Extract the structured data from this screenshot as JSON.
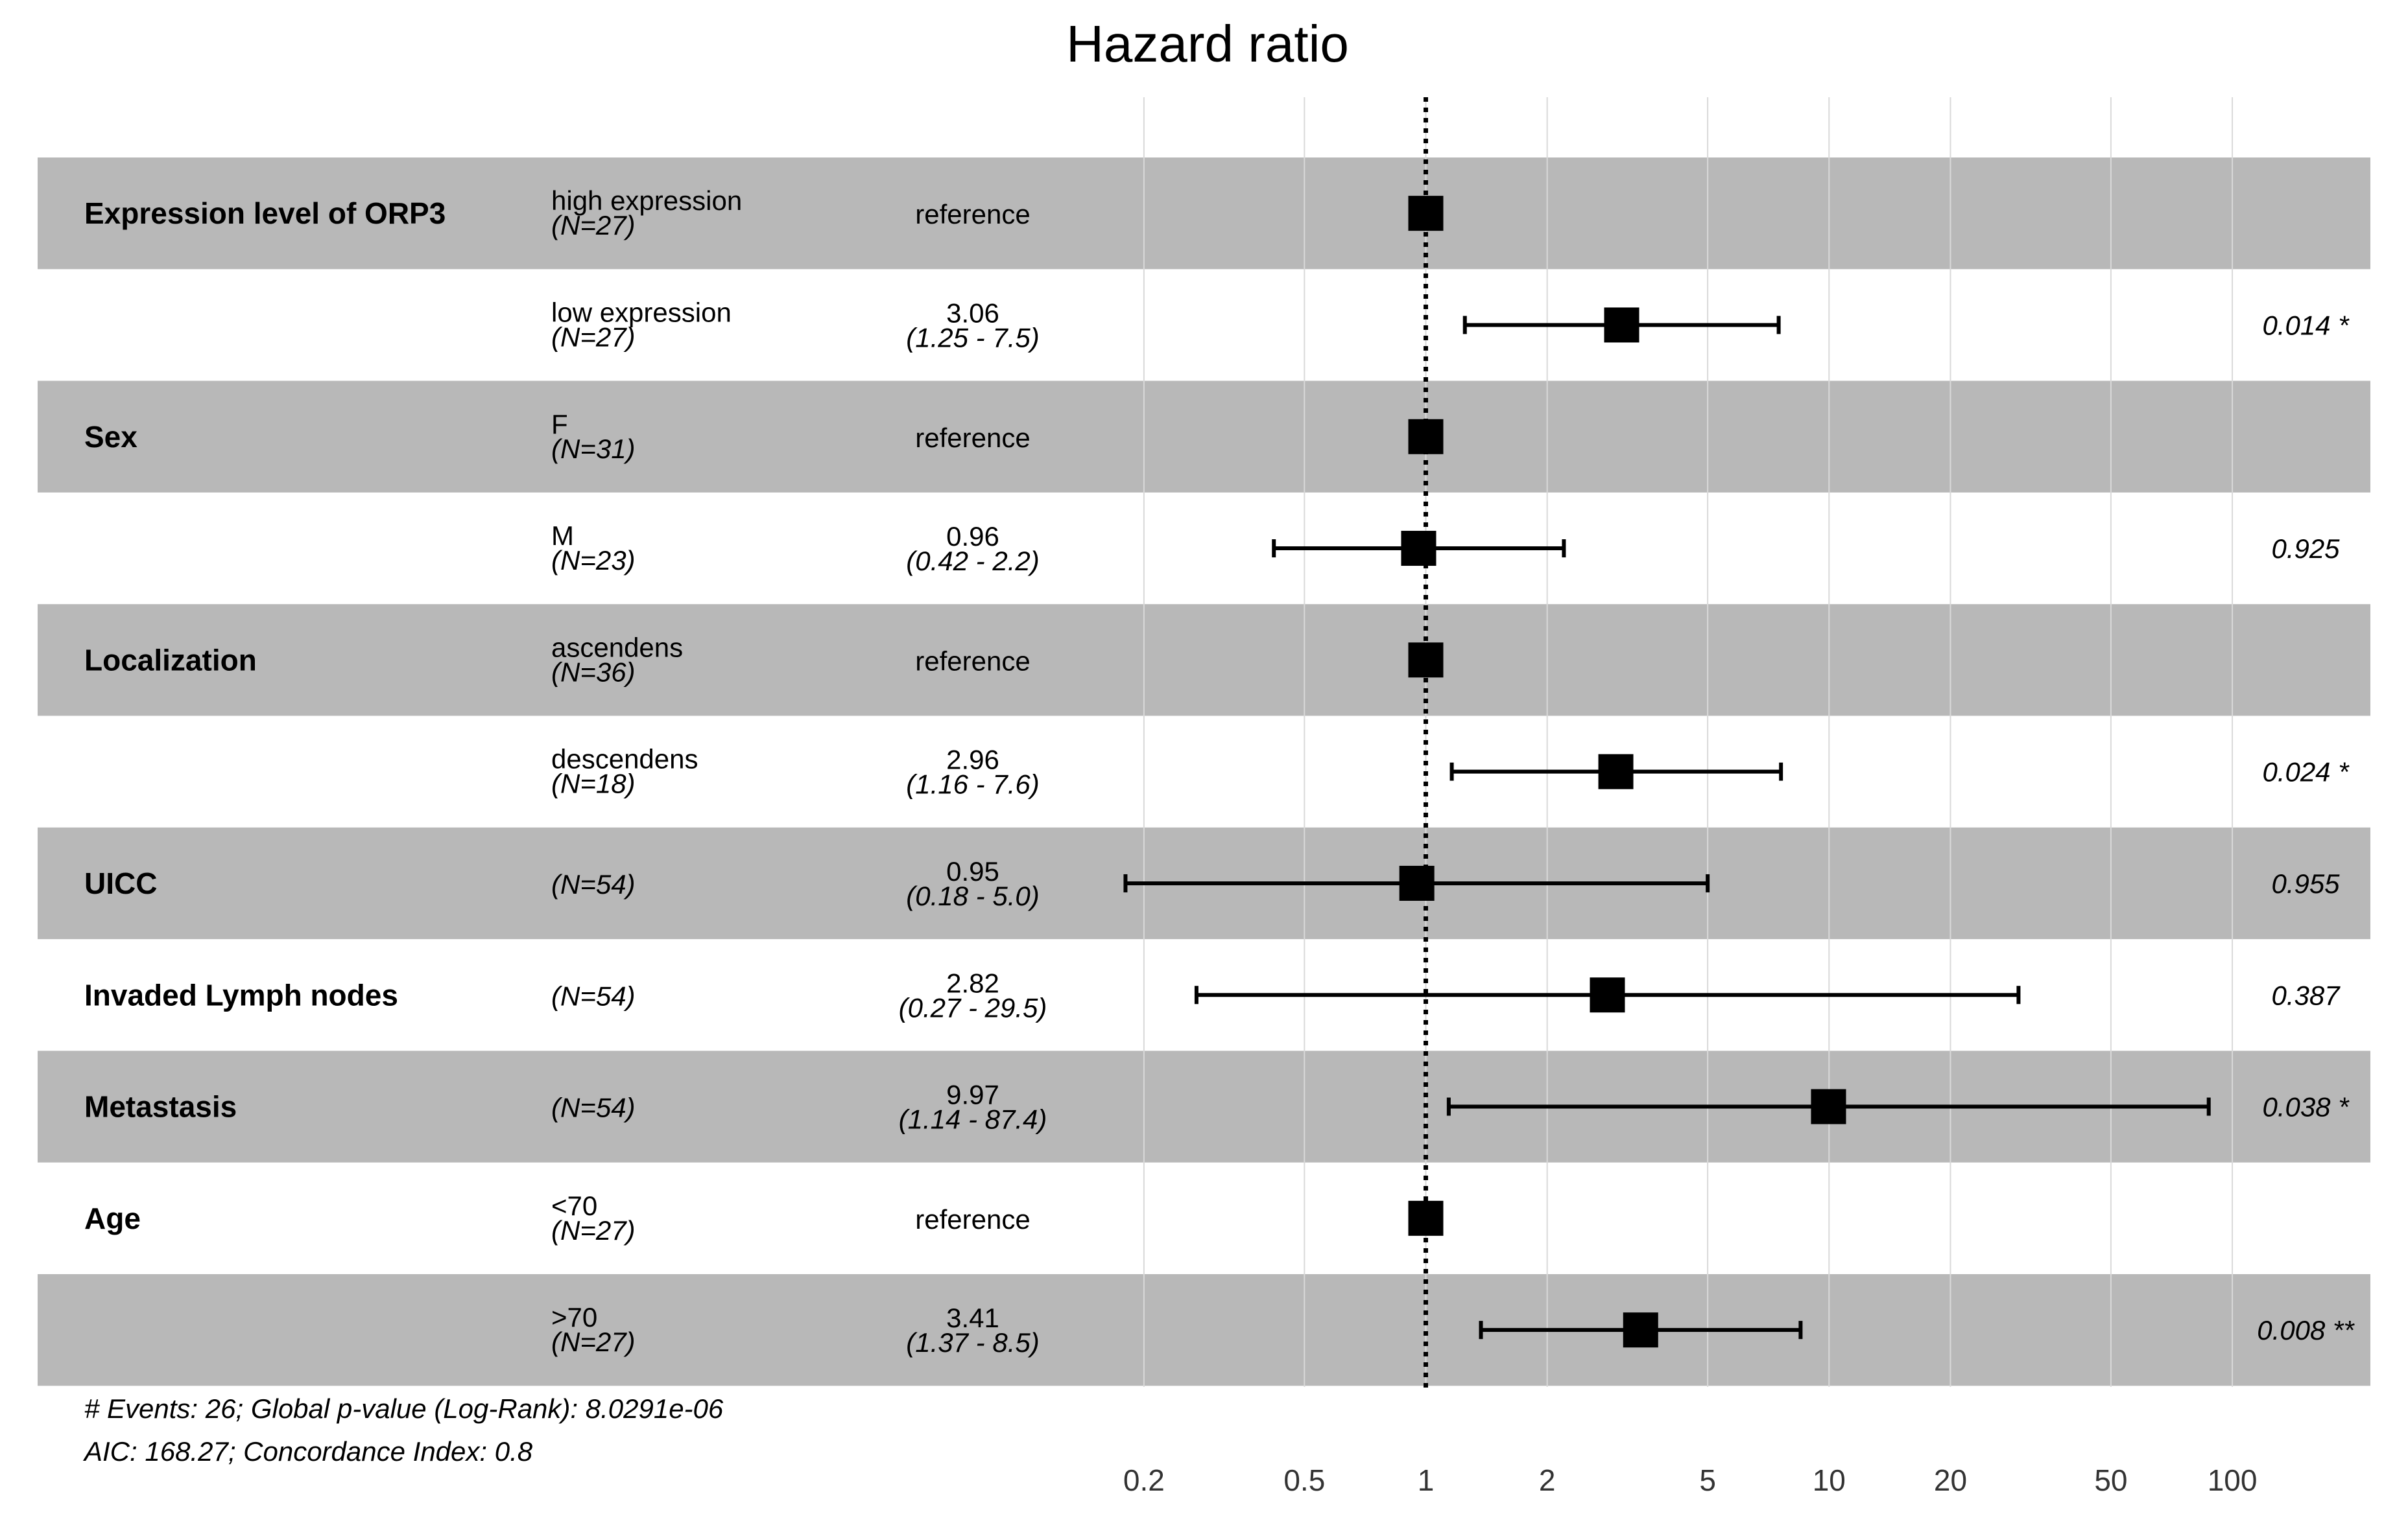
{
  "chart_data": {
    "type": "forest",
    "title": "Hazard ratio",
    "x_scale": "log",
    "xlim": [
      0.17,
      220
    ],
    "x_ticks": [
      0.2,
      0.5,
      1,
      2,
      5,
      10,
      20,
      50,
      100
    ],
    "x_tick_labels": [
      "0.2",
      "0.5",
      "1",
      "2",
      "5",
      "10",
      "20",
      "50",
      "100"
    ],
    "reference_line": 1,
    "rows": [
      {
        "variable": "Expression level of ORP3",
        "level": "high expression",
        "n": "(N=27)",
        "estimate_text": "reference",
        "ci_text": "",
        "p_text": "",
        "hr": 1,
        "lo": null,
        "hi": null,
        "shaded": true
      },
      {
        "variable": "",
        "level": "low expression",
        "n": "(N=27)",
        "estimate_text": "3.06",
        "ci_text": "(1.25 -  7.5)",
        "p_text": "0.014 *",
        "hr": 3.06,
        "lo": 1.25,
        "hi": 7.5,
        "shaded": false
      },
      {
        "variable": "Sex",
        "level": "F",
        "n": "(N=31)",
        "estimate_text": "reference",
        "ci_text": "",
        "p_text": "",
        "hr": 1,
        "lo": null,
        "hi": null,
        "shaded": true
      },
      {
        "variable": "",
        "level": "M",
        "n": "(N=23)",
        "estimate_text": "0.96",
        "ci_text": "(0.42 -  2.2)",
        "p_text": "0.925",
        "hr": 0.96,
        "lo": 0.42,
        "hi": 2.2,
        "shaded": false
      },
      {
        "variable": "Localization",
        "level": "ascendens",
        "n": "(N=36)",
        "estimate_text": "reference",
        "ci_text": "",
        "p_text": "",
        "hr": 1,
        "lo": null,
        "hi": null,
        "shaded": true
      },
      {
        "variable": "",
        "level": "descendens",
        "n": "(N=18)",
        "estimate_text": "2.96",
        "ci_text": "(1.16 -  7.6)",
        "p_text": "0.024 *",
        "hr": 2.96,
        "lo": 1.16,
        "hi": 7.6,
        "shaded": false
      },
      {
        "variable": "UICC",
        "level": "",
        "n": "(N=54)",
        "estimate_text": "0.95",
        "ci_text": "(0.18 -  5.0)",
        "p_text": "0.955",
        "hr": 0.95,
        "lo": 0.18,
        "hi": 5.0,
        "shaded": true
      },
      {
        "variable": "Invaded Lymph nodes",
        "level": "",
        "n": "(N=54)",
        "estimate_text": "2.82",
        "ci_text": "(0.27 - 29.5)",
        "p_text": "0.387",
        "hr": 2.82,
        "lo": 0.27,
        "hi": 29.5,
        "shaded": false
      },
      {
        "variable": "Metastasis",
        "level": "",
        "n": "(N=54)",
        "estimate_text": "9.97",
        "ci_text": "(1.14 - 87.4)",
        "p_text": "0.038 *",
        "hr": 9.97,
        "lo": 1.14,
        "hi": 87.4,
        "shaded": true
      },
      {
        "variable": "Age",
        "level": "<70",
        "n": "(N=27)",
        "estimate_text": "reference",
        "ci_text": "",
        "p_text": "",
        "hr": 1,
        "lo": null,
        "hi": null,
        "shaded": false
      },
      {
        "variable": "",
        "level": ">70",
        "n": "(N=27)",
        "estimate_text": "3.41",
        "ci_text": "(1.37 -  8.5)",
        "p_text": "0.008 **",
        "hr": 3.41,
        "lo": 1.37,
        "hi": 8.5,
        "shaded": true
      }
    ],
    "footnotes": [
      "# Events: 26; Global p-value (Log-Rank): 8.0291e-06",
      "AIC: 168.27; Concordance Index: 0.8"
    ],
    "colors": {
      "band": "#b8b8b8",
      "marker": "#000000",
      "grid": "#d9d9d9",
      "refline": "#000000"
    }
  }
}
